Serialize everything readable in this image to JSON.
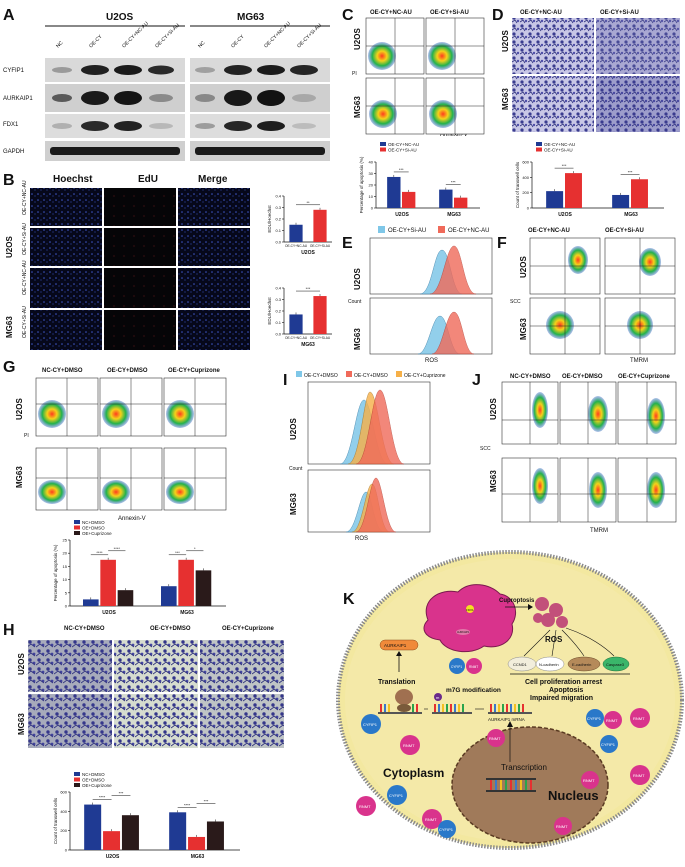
{
  "panels": {
    "A": {
      "label": "A",
      "groups": [
        "U2OS",
        "MG63"
      ],
      "lanes": [
        "NC",
        "OE-CY",
        "OE-CY+NC-AU",
        "OE-CY+Si-AU",
        "NC",
        "OE-CY",
        "OE-CY+NC-AU",
        "OE-CY+Si-AU"
      ],
      "proteins": [
        "CYFIP1",
        "AURKAIP1",
        "FDX1",
        "GAPDH"
      ]
    },
    "B": {
      "label": "B",
      "headers": [
        "Hoechst",
        "EdU",
        "Merge"
      ],
      "cell_lines": [
        "U2OS",
        "MG63"
      ],
      "row_labels": [
        "OE-CY+NC-AU",
        "OE-CY+Si-AU",
        "OE-CY+NC-AU",
        "OE-CY+Si-AU"
      ],
      "ylabel": "EDU/Hoechst",
      "sig": "**"
    },
    "C": {
      "label": "C",
      "cols": [
        "OE-CY+NC-AU",
        "OE-CY+Si-AU"
      ],
      "rows": [
        "U2OS",
        "MG63"
      ],
      "xlabel": "Annexin-V",
      "ylabel_small": "PI",
      "sig": "***"
    },
    "D": {
      "label": "D",
      "cols": [
        "OE-CY+NC-AU",
        "OE-CY+Si-AU"
      ],
      "rows": [
        "U2OS",
        "MG63"
      ],
      "sig": "***"
    },
    "E": {
      "label": "E",
      "legend": [
        "OE-CY+Si-AU",
        "OE-CY+NC-AU"
      ],
      "rows": [
        "U2OS",
        "MG63"
      ],
      "ylabel": "Count",
      "xlabel": "ROS"
    },
    "F": {
      "label": "F",
      "cols": [
        "OE-CY+NC-AU",
        "OE-CY+Si-AU"
      ],
      "rows": [
        "U2OS",
        "MG63"
      ],
      "ylabel": "SCC",
      "xlabel": "TMRM"
    },
    "G": {
      "label": "G",
      "cols": [
        "NC-CY+DMSO",
        "OE-CY+DMSO",
        "OE-CY+Cuprizone"
      ],
      "rows": [
        "U2OS",
        "MG63"
      ],
      "xlabel": "Annexin-V",
      "ylabel_small": "PI"
    },
    "H": {
      "label": "H",
      "cols": [
        "NC-CY+DMSO",
        "OE-CY+DMSO",
        "OE-CY+Cuprizone"
      ],
      "rows": [
        "U2OS",
        "MG63"
      ]
    },
    "I": {
      "label": "I",
      "legend": [
        "OE-CY+DMSO",
        "OE-CY+DMSO",
        "OE-CY+Cuprizone"
      ],
      "rows": [
        "U2OS",
        "MG63"
      ],
      "ylabel": "Count",
      "xlabel": "ROS"
    },
    "J": {
      "label": "J",
      "cols": [
        "NC-CY+DMSO",
        "OE-CY+DMSO",
        "OE-CY+Cuprizone"
      ],
      "rows": [
        "U2OS",
        "MG63"
      ],
      "ylabel": "SCC",
      "xlabel": "TMRM"
    },
    "K": {
      "label": "K",
      "labels": {
        "fdx1": "FDX1",
        "aurkaip1_protein": "AURKAIP1",
        "cuproptosis": "Cuproptosis",
        "ros": "ROS",
        "ccnd1": "CCND1",
        "ncadherin": "N-cadherin",
        "ecadherin": "E-cadherin",
        "caspase3": "Caspase3",
        "outcome1": "Cell proliferation arrest",
        "outcome2": "Apoptosis",
        "outcome3": "Impaired migration",
        "translation": "Translation",
        "m7g": "m7G modification",
        "aurkaip1_mrna": "AURKAIP1 mRNA",
        "cytoplasm": "Cytoplasm",
        "nucleus": "Nucleus",
        "transcription": "Transcription",
        "cyfip1": "CYFIP1",
        "rnmt": "RNMT",
        "m": "m"
      }
    }
  },
  "chart_data": [
    {
      "type": "bar",
      "panel": "B-top",
      "categories": [
        "OE-CY+NC-AU",
        "OE-CY+Si-AU"
      ],
      "values": [
        0.15,
        0.28
      ],
      "colors": [
        "#1f3a93",
        "#e63030"
      ],
      "xlabel": "U2OS",
      "ylabel": "EDU/Hoechst",
      "ylim": [
        0,
        0.4
      ],
      "yticks": [
        "0.0",
        "0.1",
        "0.2",
        "0.3",
        "0.4"
      ],
      "sig": "**"
    },
    {
      "type": "bar",
      "panel": "B-bottom",
      "categories": [
        "OE-CY+NC-AU",
        "OE-CY+Si-AU"
      ],
      "values": [
        0.17,
        0.33
      ],
      "colors": [
        "#1f3a93",
        "#e63030"
      ],
      "xlabel": "MG63",
      "ylabel": "EDU/Hoechst",
      "ylim": [
        0,
        0.4
      ],
      "yticks": [
        "0.0",
        "0.1",
        "0.2",
        "0.3",
        "0.4"
      ],
      "sig": "***"
    },
    {
      "type": "bar",
      "panel": "C",
      "categories": [
        "U2OS",
        "MG63"
      ],
      "series": [
        {
          "name": "OE-CY+NC-AU",
          "values": [
            27,
            16
          ],
          "color": "#1f3a93"
        },
        {
          "name": "OE-CY+Si-AU",
          "values": [
            14,
            9
          ],
          "color": "#e63030"
        }
      ],
      "ylabel": "Percentage of apoptosis (%)",
      "ylim": [
        0,
        40
      ],
      "yticks": [
        "0",
        "10",
        "20",
        "30",
        "40"
      ],
      "sig": [
        "***",
        "***"
      ]
    },
    {
      "type": "bar",
      "panel": "D",
      "categories": [
        "U2OS",
        "MG63"
      ],
      "series": [
        {
          "name": "OE-CY+NC-AU",
          "values": [
            220,
            170
          ],
          "color": "#1f3a93"
        },
        {
          "name": "OE-CY+Si-AU",
          "values": [
            455,
            375
          ],
          "color": "#e63030"
        }
      ],
      "ylabel": "Count of transwell cells",
      "ylim": [
        0,
        600
      ],
      "yticks": [
        "0",
        "200",
        "400",
        "600"
      ],
      "sig": [
        "***",
        "***"
      ]
    },
    {
      "type": "bar",
      "panel": "G",
      "categories": [
        "U2OS",
        "MG63"
      ],
      "series": [
        {
          "name": "NC+DMSO",
          "values": [
            2.5,
            7.5
          ],
          "color": "#1f3a93"
        },
        {
          "name": "OE+DMSO",
          "values": [
            17.5,
            17.5
          ],
          "color": "#e63030"
        },
        {
          "name": "OE+Cuprizone",
          "values": [
            6.0,
            13.5
          ],
          "color": "#2a1a1a"
        }
      ],
      "ylabel": "Percentage of apoptosis (%)",
      "ylim": [
        0,
        25
      ],
      "yticks": [
        "0",
        "5",
        "10",
        "15",
        "20",
        "25"
      ],
      "sig": [
        "****",
        "****",
        "***",
        "*"
      ]
    },
    {
      "type": "bar",
      "panel": "H",
      "categories": [
        "U2OS",
        "MG63"
      ],
      "series": [
        {
          "name": "NC+DMSO",
          "values": [
            470,
            390
          ],
          "color": "#1f3a93"
        },
        {
          "name": "OE+DMSO",
          "values": [
            195,
            135
          ],
          "color": "#e63030"
        },
        {
          "name": "OE+Cuprizone",
          "values": [
            360,
            295
          ],
          "color": "#2a1a1a"
        }
      ],
      "ylabel": "Count of transwell cells",
      "ylim": [
        0,
        600
      ],
      "yticks": [
        "0",
        "200",
        "400",
        "600"
      ],
      "sig": [
        "****",
        "***",
        "****",
        "***"
      ]
    }
  ]
}
